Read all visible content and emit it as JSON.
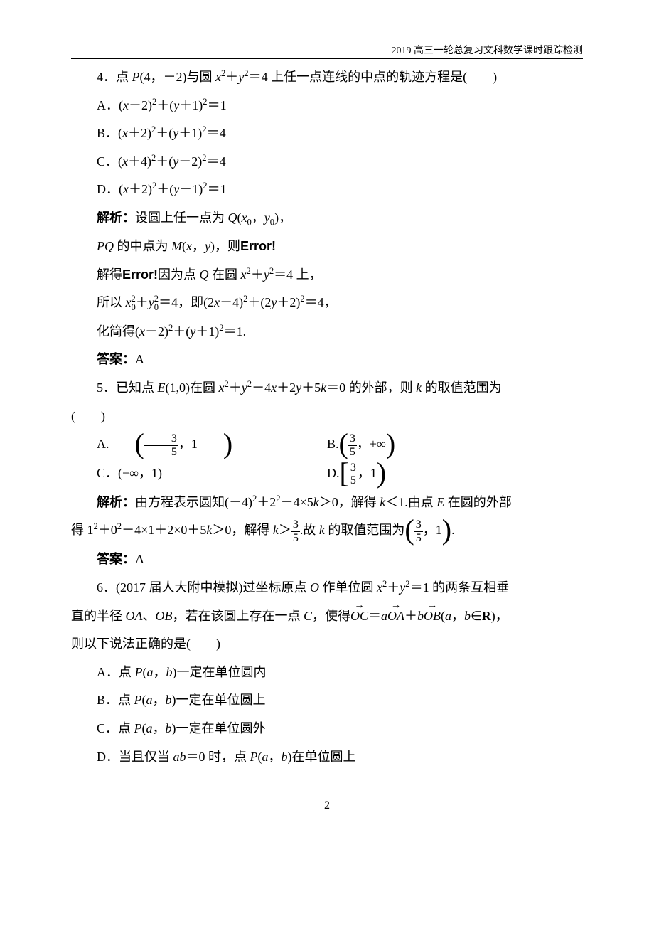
{
  "header": {
    "text": "2019 高三一轮总复习文科数学课时跟踪检测",
    "fontsize": 14,
    "border_color": "#000000"
  },
  "page_number": "2",
  "colors": {
    "text": "#000000",
    "background": "#ffffff"
  },
  "typography": {
    "body_font": "SimSun / Times New Roman",
    "body_fontsize": 18,
    "line_height": 2.2
  },
  "q4": {
    "stem_prefix": "4．点 ",
    "point": "P(4，−2)",
    "stem_mid": "与圆 ",
    "circle_eq": "x²+y²=4",
    "stem_suffix": " 上任一点连线的中点的轨迹方程是(　　)",
    "options": {
      "A": "A．(x−2)²+(y+1)²=1",
      "B": "B．(x+2)²+(y+1)²=4",
      "C": "C．(x+4)²+(y−2)²=4",
      "D": "D．(x+2)²+(y−1)²=1"
    },
    "solution": {
      "label": "解析：",
      "line1_a": "设圆上任一点为 ",
      "line1_b": "Q(x₀，y₀)，",
      "line2_a": "PQ 的中点为 M(x，y)，则",
      "line2_err": "Error!",
      "line3_a": "解得",
      "line3_err": "Error!",
      "line3_b": "因为点 Q 在圆 x²+y²=4 上，",
      "line4": "所以 x₀²+y₀²=4，即(2x−4)²+(2y+2)²=4，",
      "line5": "化简得(x−2)²+(y+1)²=1."
    },
    "answer_label": "答案：",
    "answer": "A"
  },
  "q5": {
    "stem_prefix": "5．已知点 ",
    "point": "E(1,0)",
    "stem_mid": "在圆 ",
    "circle_eq": "x²+y²−4x+2y+5k=0",
    "stem_suffix": " 的外部，则 k 的取值范围为",
    "stem_tail": "(　　)",
    "frac_num": "3",
    "frac_den": "5",
    "options": {
      "A_prefix": "A.",
      "A_tail": "，1",
      "B_prefix": "B.",
      "B_tail": "，+∞",
      "C": "C．(−∞，1)",
      "D_prefix": "D.",
      "D_tail": "，1"
    },
    "solution": {
      "label": "解析：",
      "line1": "由方程表示圆知(−4)²+2²−4×5k>0，解得 k<1.由点 E 在圆的外部",
      "line2_a": "得 1²+0²−4×1+2×0+5k>0，解得 k>",
      "line2_b": ".故 k 的取值范围为",
      "line2_c": "，1",
      "line2_d": "."
    },
    "answer_label": "答案：",
    "answer": "A"
  },
  "q6": {
    "stem_prefix": "6．(2017 届人大附中模拟)过坐标原点 ",
    "O": "O",
    "stem_mid1": " 作单位圆 ",
    "circle_eq": "x²+y²=1",
    "stem_mid2": " 的两条互相垂",
    "line2_a": "直的半径 OA、OB，若在该圆上存在一点 C，使得",
    "vec_OC": "OC",
    "eq": "＝a",
    "vec_OA": "OA",
    "plus": "＋b",
    "vec_OB": "OB",
    "line2_b": "(a，b∈",
    "R": "R",
    "line2_c": ")，",
    "line3": "则以下说法正确的是(　　)",
    "options": {
      "A": "A．点 P(a，b)一定在单位圆内",
      "B": "B．点 P(a，b)一定在单位圆上",
      "C": "C．点 P(a，b)一定在单位圆外",
      "D": "D．当且仅当 ab=0 时，点 P(a，b)在单位圆上"
    }
  }
}
